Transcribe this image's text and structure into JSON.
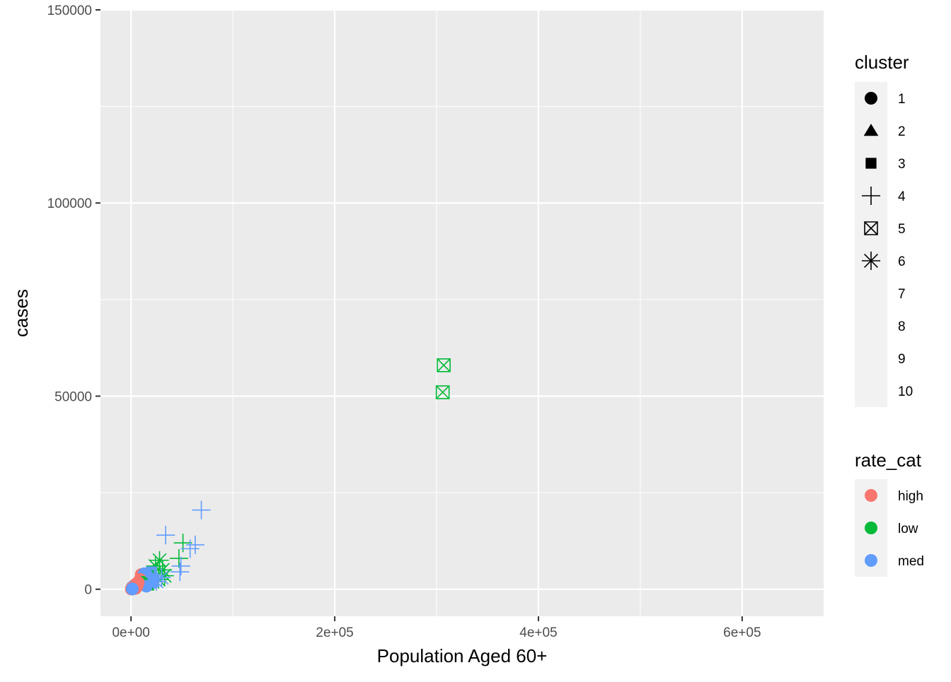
{
  "chart_data": {
    "type": "scatter",
    "xlabel": "Population Aged 60+",
    "ylabel": "cases",
    "xlim": [
      -30000,
      680000
    ],
    "ylim": [
      -7000,
      150000
    ],
    "x_ticks": [
      0,
      200000,
      400000,
      600000
    ],
    "x_tick_labels": [
      "0e+00",
      "2e+05",
      "4e+05",
      "6e+05"
    ],
    "y_ticks": [
      0,
      50000,
      100000,
      150000
    ],
    "y_tick_labels": [
      "0",
      "50000",
      "100000",
      "150000"
    ],
    "grid": true,
    "background": "#EBEBEB",
    "legend_position": "right",
    "legends": {
      "shape": {
        "title": "cluster",
        "items": [
          {
            "label": "1",
            "shape": "circle"
          },
          {
            "label": "2",
            "shape": "triangle"
          },
          {
            "label": "3",
            "shape": "square"
          },
          {
            "label": "4",
            "shape": "plus"
          },
          {
            "label": "5",
            "shape": "square-cross"
          },
          {
            "label": "6",
            "shape": "asterisk"
          },
          {
            "label": "7",
            "shape": "none"
          },
          {
            "label": "8",
            "shape": "none"
          },
          {
            "label": "9",
            "shape": "none"
          },
          {
            "label": "10",
            "shape": "none"
          }
        ]
      },
      "color": {
        "title": "rate_cat",
        "items": [
          {
            "label": "high",
            "color": "#F8766D"
          },
          {
            "label": "low",
            "color": "#00BA38"
          },
          {
            "label": "med",
            "color": "#619CFF"
          }
        ]
      }
    },
    "points": [
      {
        "x": 307000,
        "y": 58000,
        "cluster": "5",
        "rate_cat": "low"
      },
      {
        "x": 306000,
        "y": 51000,
        "cluster": "5",
        "rate_cat": "low"
      },
      {
        "x": 69000,
        "y": 20500,
        "cluster": "4",
        "rate_cat": "med"
      },
      {
        "x": 34000,
        "y": 14000,
        "cluster": "4",
        "rate_cat": "med"
      },
      {
        "x": 51000,
        "y": 12000,
        "cluster": "4",
        "rate_cat": "low"
      },
      {
        "x": 63000,
        "y": 11500,
        "cluster": "4",
        "rate_cat": "med"
      },
      {
        "x": 58000,
        "y": 10500,
        "cluster": "4",
        "rate_cat": "med"
      },
      {
        "x": 47000,
        "y": 8000,
        "cluster": "4",
        "rate_cat": "low"
      },
      {
        "x": 49000,
        "y": 6000,
        "cluster": "4",
        "rate_cat": "med"
      },
      {
        "x": 48000,
        "y": 4500,
        "cluster": "4",
        "rate_cat": "med"
      },
      {
        "x": 28000,
        "y": 7500,
        "cluster": "6",
        "rate_cat": "low"
      },
      {
        "x": 24000,
        "y": 6000,
        "cluster": "6",
        "rate_cat": "low"
      },
      {
        "x": 31000,
        "y": 5000,
        "cluster": "6",
        "rate_cat": "low"
      },
      {
        "x": 22000,
        "y": 4000,
        "cluster": "6",
        "rate_cat": "low"
      },
      {
        "x": 33000,
        "y": 3500,
        "cluster": "6",
        "rate_cat": "low"
      },
      {
        "x": 27000,
        "y": 2500,
        "cluster": "6",
        "rate_cat": "low"
      },
      {
        "x": 19000,
        "y": 3000,
        "cluster": "6",
        "rate_cat": "low"
      },
      {
        "x": 25000,
        "y": 2000,
        "cluster": "6",
        "rate_cat": "med"
      },
      {
        "x": 30000,
        "y": 3000,
        "cluster": "6",
        "rate_cat": "med"
      },
      {
        "x": 20000,
        "y": 4500,
        "cluster": "3",
        "rate_cat": "med"
      },
      {
        "x": 17000,
        "y": 3500,
        "cluster": "3",
        "rate_cat": "low"
      },
      {
        "x": 22000,
        "y": 2500,
        "cluster": "3",
        "rate_cat": "med"
      },
      {
        "x": 15000,
        "y": 2000,
        "cluster": "3",
        "rate_cat": "low"
      },
      {
        "x": 19000,
        "y": 1500,
        "cluster": "3",
        "rate_cat": "med"
      },
      {
        "x": 18000,
        "y": 3000,
        "cluster": "2",
        "rate_cat": "med"
      },
      {
        "x": 14000,
        "y": 2500,
        "cluster": "2",
        "rate_cat": "low"
      },
      {
        "x": 21000,
        "y": 1800,
        "cluster": "2",
        "rate_cat": "med"
      },
      {
        "x": 16000,
        "y": 1000,
        "cluster": "2",
        "rate_cat": "low"
      },
      {
        "x": 12000,
        "y": 1500,
        "cluster": "2",
        "rate_cat": "med"
      },
      {
        "x": 10000,
        "y": 3800,
        "cluster": "1",
        "rate_cat": "high"
      },
      {
        "x": 13000,
        "y": 4000,
        "cluster": "1",
        "rate_cat": "med"
      },
      {
        "x": 16000,
        "y": 3500,
        "cluster": "1",
        "rate_cat": "med"
      },
      {
        "x": 12000,
        "y": 2800,
        "cluster": "1",
        "rate_cat": "med"
      },
      {
        "x": 18000,
        "y": 2000,
        "cluster": "1",
        "rate_cat": "med"
      },
      {
        "x": 14000,
        "y": 1500,
        "cluster": "1",
        "rate_cat": "med"
      },
      {
        "x": 9000,
        "y": 2500,
        "cluster": "1",
        "rate_cat": "high"
      },
      {
        "x": 11000,
        "y": 1800,
        "cluster": "1",
        "rate_cat": "low"
      },
      {
        "x": 8000,
        "y": 1200,
        "cluster": "1",
        "rate_cat": "high"
      },
      {
        "x": 15000,
        "y": 800,
        "cluster": "1",
        "rate_cat": "med"
      },
      {
        "x": 7000,
        "y": 1800,
        "cluster": "1",
        "rate_cat": "high"
      },
      {
        "x": 6000,
        "y": 900,
        "cluster": "1",
        "rate_cat": "high"
      },
      {
        "x": 5000,
        "y": 500,
        "cluster": "1",
        "rate_cat": "high"
      },
      {
        "x": 4000,
        "y": 1200,
        "cluster": "1",
        "rate_cat": "high"
      },
      {
        "x": 3000,
        "y": 300,
        "cluster": "1",
        "rate_cat": "high"
      },
      {
        "x": 2000,
        "y": 700,
        "cluster": "1",
        "rate_cat": "high"
      },
      {
        "x": 1500,
        "y": 200,
        "cluster": "1",
        "rate_cat": "high"
      },
      {
        "x": 1000,
        "y": 500,
        "cluster": "1",
        "rate_cat": "med"
      },
      {
        "x": 500,
        "y": 100,
        "cluster": "1",
        "rate_cat": "high"
      },
      {
        "x": 800,
        "y": 300,
        "cluster": "1",
        "rate_cat": "high"
      },
      {
        "x": 2500,
        "y": 150,
        "cluster": "1",
        "rate_cat": "med"
      },
      {
        "x": 3500,
        "y": 600,
        "cluster": "1",
        "rate_cat": "high"
      },
      {
        "x": 4500,
        "y": 250,
        "cluster": "1",
        "rate_cat": "high"
      },
      {
        "x": 6500,
        "y": 1600,
        "cluster": "1",
        "rate_cat": "high"
      },
      {
        "x": 300,
        "y": 50,
        "cluster": "1",
        "rate_cat": "high"
      },
      {
        "x": 1200,
        "y": 80,
        "cluster": "1",
        "rate_cat": "med"
      }
    ]
  }
}
